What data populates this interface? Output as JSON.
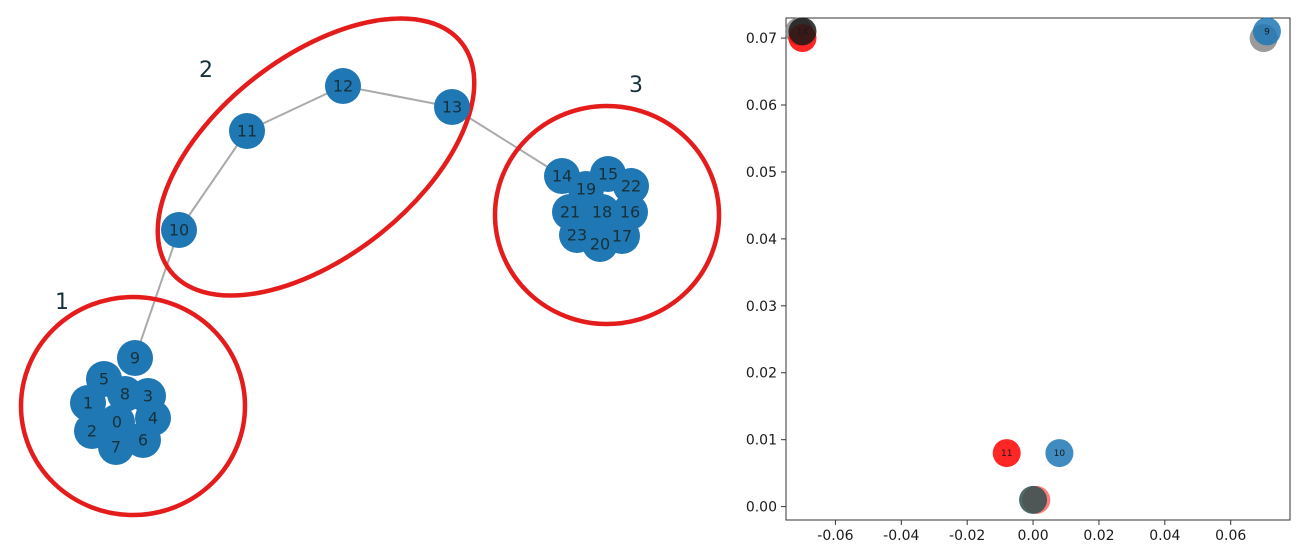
{
  "graph": {
    "groups": [
      {
        "label": "1",
        "members": [
          "0",
          "1",
          "2",
          "3",
          "4",
          "5",
          "6",
          "7",
          "8",
          "9"
        ]
      },
      {
        "label": "2",
        "members": [
          "10",
          "11",
          "12",
          "13"
        ]
      },
      {
        "label": "3",
        "members": [
          "14",
          "15",
          "16",
          "17",
          "18",
          "19",
          "20",
          "21",
          "22",
          "23"
        ]
      }
    ],
    "nodes": [
      "0",
      "1",
      "2",
      "3",
      "4",
      "5",
      "6",
      "7",
      "8",
      "9",
      "10",
      "11",
      "12",
      "13",
      "14",
      "15",
      "16",
      "17",
      "18",
      "19",
      "20",
      "21",
      "22",
      "23"
    ],
    "edges": [
      [
        "9",
        "10"
      ],
      [
        "10",
        "11"
      ],
      [
        "11",
        "12"
      ],
      [
        "12",
        "13"
      ],
      [
        "13",
        "14"
      ]
    ],
    "colors": {
      "node": "#1f77b4",
      "edge": "#aaaaaa",
      "highlight": "#e51c1c",
      "label": "#17313a"
    }
  },
  "chart_data": {
    "type": "scatter",
    "xlim": [
      -0.075,
      0.078
    ],
    "ylim": [
      -0.002,
      0.073
    ],
    "xticks": [
      "-0.06",
      "-0.04",
      "-0.02",
      "0.00",
      "0.02",
      "0.04",
      "0.06"
    ],
    "yticks": [
      "0.00",
      "0.01",
      "0.02",
      "0.03",
      "0.04",
      "0.05",
      "0.06",
      "0.07"
    ],
    "grid": false,
    "points": [
      {
        "x": -0.071,
        "y": 0.071,
        "color": "#888888",
        "label": ""
      },
      {
        "x": -0.07,
        "y": 0.07,
        "color": "#ff0000",
        "label": ""
      },
      {
        "x": -0.07,
        "y": 0.071,
        "color": "#1a1a1a",
        "label": "14"
      },
      {
        "x": 0.07,
        "y": 0.07,
        "color": "#888888",
        "label": ""
      },
      {
        "x": 0.071,
        "y": 0.071,
        "color": "#1f77b4",
        "label": "9"
      },
      {
        "x": -0.008,
        "y": 0.008,
        "color": "#ff0000",
        "label": "11"
      },
      {
        "x": 0.008,
        "y": 0.008,
        "color": "#1f77b4",
        "label": "10"
      },
      {
        "x": 0.001,
        "y": 0.001,
        "color": "#ff6666",
        "label": ""
      },
      {
        "x": 0.0,
        "y": 0.001,
        "color": "#2f4f4f",
        "label": ""
      }
    ]
  }
}
